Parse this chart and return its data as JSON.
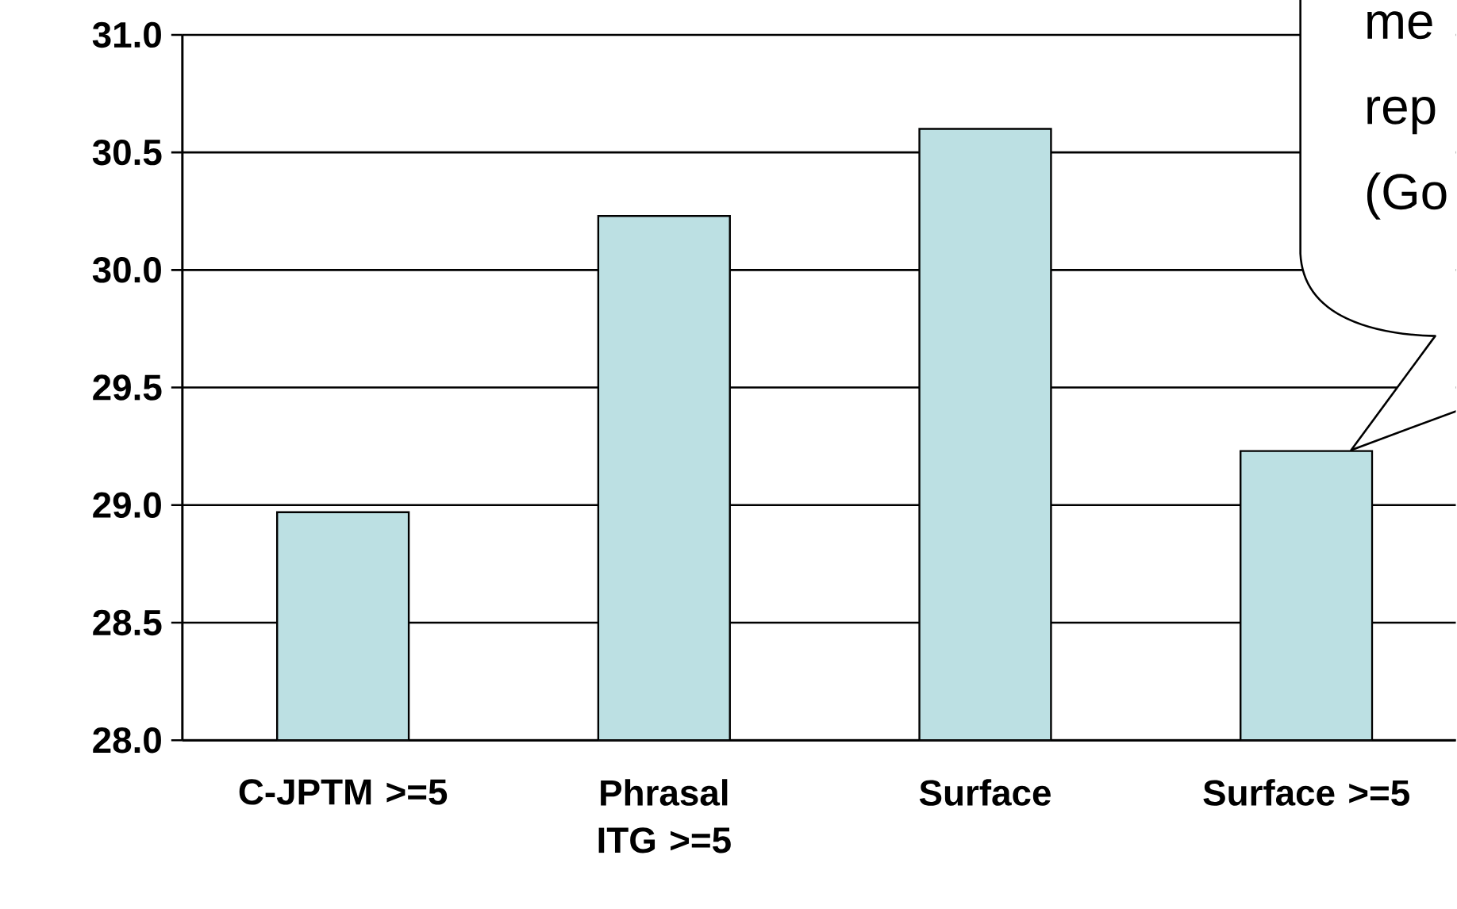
{
  "chart_data": {
    "type": "bar",
    "categories": [
      "C-JPTM >=5",
      "Phrasal ITG >=5",
      "Surface",
      "Surface >=5"
    ],
    "values": [
      28.97,
      30.23,
      30.6,
      29.23
    ],
    "color": "#bce0e3",
    "ylim": [
      28,
      31
    ],
    "yticks": [
      {
        "value": 28,
        "label": "28.0"
      },
      {
        "value": 28.5,
        "label": "28.5"
      },
      {
        "value": 29,
        "label": "29.0"
      },
      {
        "value": 29.5,
        "label": "29.5"
      },
      {
        "value": 30,
        "label": "30.0"
      },
      {
        "value": 30.5,
        "label": "30.5"
      },
      {
        "value": 31,
        "label": "31.0"
      }
    ],
    "grid": "y",
    "annotations": [
      "me rep (Go"
    ]
  }
}
